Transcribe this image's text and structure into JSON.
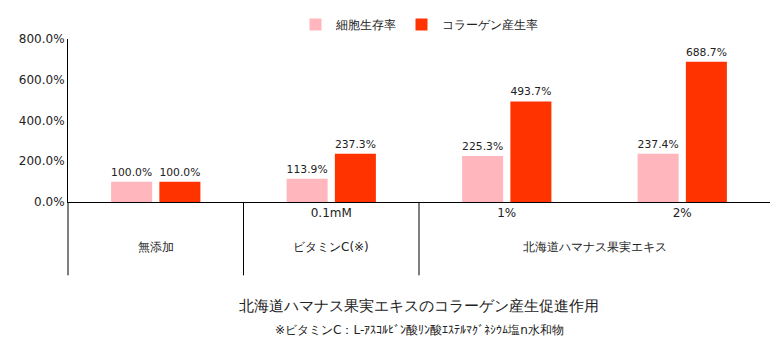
{
  "chart_data": {
    "type": "bar",
    "title": "北海道ハマナス果実エキスのコラーゲン産生促進作用",
    "note": "※ビタミンC：L-ｱｽｺﾙﾋﾞﾝ酸ﾘﾝ酸ｴｽﾃﾙﾏｸﾞﾈｼｳﾑ塩n水和物",
    "categories": [
      {
        "group": "無添加",
        "label": null
      },
      {
        "group": "ビタミンC(※)",
        "label": "0.1mM"
      },
      {
        "group": "北海道ハマナス果実エキス",
        "label": "1%"
      },
      {
        "group": "北海道ハマナス果実エキス",
        "label": "2%"
      }
    ],
    "series": [
      {
        "name": "細胞生存率",
        "color": "#ffb6bd",
        "values": [
          100.0,
          113.9,
          225.3,
          237.4
        ],
        "value_labels": [
          "100.0%",
          "113.9%",
          "225.3%",
          "237.4%"
        ]
      },
      {
        "name": "コラーゲン産生率",
        "color": "#ff3300",
        "values": [
          100.0,
          237.3,
          493.7,
          688.7
        ],
        "value_labels": [
          "100.0%",
          "237.3%",
          "493.7%",
          "688.7%"
        ]
      }
    ],
    "ylim": [
      0,
      800
    ],
    "yticks": [
      {
        "value": 0,
        "label": "0.0%"
      },
      {
        "value": 200,
        "label": "200.0%"
      },
      {
        "value": 400,
        "label": "400.0%"
      },
      {
        "value": 600,
        "label": "600.0%"
      },
      {
        "value": 800,
        "label": "800.0%"
      }
    ],
    "grid": false,
    "legend": "top",
    "data_labels": true
  }
}
